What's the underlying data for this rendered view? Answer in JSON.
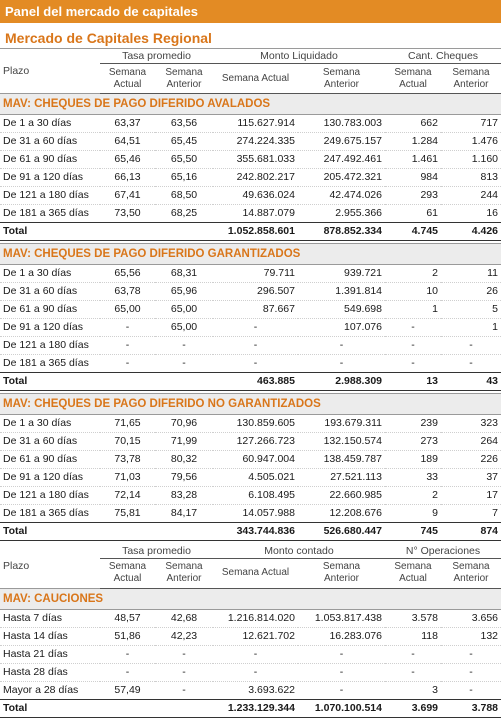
{
  "banner": "Panel del mercado de capitales",
  "subtitle": "Mercado de Capitales Regional",
  "header1": {
    "plazo": "Plazo",
    "grp1": "Tasa promedio",
    "grp2": "Monto Liquidado",
    "grp3": "Cant. Cheques",
    "semana_actual_2l": [
      "Semana",
      "Actual"
    ],
    "semana_anterior_2l": [
      "Semana",
      "Anterior"
    ],
    "semana_actual": "Semana Actual"
  },
  "header2": {
    "plazo": "Plazo",
    "grp1": "Tasa promedio",
    "grp2": "Monto contado",
    "grp3": "N° Operaciones"
  },
  "sections": [
    {
      "title": "MAV: CHEQUES DE PAGO DIFERIDO AVALADOS",
      "rows": [
        [
          "De 1 a 30 días",
          "63,37",
          "63,56",
          "115.627.914",
          "130.783.003",
          "662",
          "717"
        ],
        [
          "De 31 a 60 días",
          "64,51",
          "65,45",
          "274.224.335",
          "249.675.157",
          "1.284",
          "1.476"
        ],
        [
          "De 61 a 90 días",
          "65,46",
          "65,50",
          "355.681.033",
          "247.492.461",
          "1.461",
          "1.160"
        ],
        [
          "De 91 a 120 días",
          "66,13",
          "65,16",
          "242.802.217",
          "205.472.321",
          "984",
          "813"
        ],
        [
          "De 121 a 180 días",
          "67,41",
          "68,50",
          "49.636.024",
          "42.474.026",
          "293",
          "244"
        ],
        [
          "De 181 a 365 días",
          "73,50",
          "68,25",
          "14.887.079",
          "2.955.366",
          "61",
          "16"
        ]
      ],
      "total": [
        "Total",
        "",
        "",
        "1.052.858.601",
        "878.852.334",
        "4.745",
        "4.426"
      ]
    },
    {
      "title": "MAV: CHEQUES DE PAGO DIFERIDO GARANTIZADOS",
      "rows": [
        [
          "De 1 a 30 días",
          "65,56",
          "68,31",
          "79.711",
          "939.721",
          "2",
          "11"
        ],
        [
          "De 31 a 60 días",
          "63,78",
          "65,96",
          "296.507",
          "1.391.814",
          "10",
          "26"
        ],
        [
          "De 61 a 90 días",
          "65,00",
          "65,00",
          "87.667",
          "549.698",
          "1",
          "5"
        ],
        [
          "De 91 a 120 días",
          "-",
          "65,00",
          "-",
          "107.076",
          "-",
          "1"
        ],
        [
          "De 121 a 180 días",
          "-",
          "-",
          "-",
          "-",
          "-",
          "-"
        ],
        [
          "De 181 a 365 días",
          "-",
          "-",
          "-",
          "-",
          "-",
          "-"
        ]
      ],
      "total": [
        "Total",
        "",
        "",
        "463.885",
        "2.988.309",
        "13",
        "43"
      ]
    },
    {
      "title": "MAV: CHEQUES DE PAGO DIFERIDO NO GARANTIZADOS",
      "rows": [
        [
          "De 1 a 30 días",
          "71,65",
          "70,96",
          "130.859.605",
          "193.679.311",
          "239",
          "323"
        ],
        [
          "De 31 a 60 días",
          "70,15",
          "71,99",
          "127.266.723",
          "132.150.574",
          "273",
          "264"
        ],
        [
          "De 61 a 90 días",
          "73,78",
          "80,32",
          "60.947.004",
          "138.459.787",
          "189",
          "226"
        ],
        [
          "De 91 a 120 días",
          "71,03",
          "79,56",
          "4.505.021",
          "27.521.113",
          "33",
          "37"
        ],
        [
          "De 121 a 180 días",
          "72,14",
          "83,28",
          "6.108.495",
          "22.660.985",
          "2",
          "17"
        ],
        [
          "De 181 a 365 días",
          "75,81",
          "84,17",
          "14.057.988",
          "12.208.676",
          "9",
          "7"
        ]
      ],
      "total": [
        "Total",
        "",
        "",
        "343.744.836",
        "526.680.447",
        "745",
        "874"
      ]
    },
    {
      "title": "MAV: CAUCIONES",
      "rows": [
        [
          "Hasta 7 días",
          "48,57",
          "42,68",
          "1.216.814.020",
          "1.053.817.438",
          "3.578",
          "3.656"
        ],
        [
          "Hasta 14 días",
          "51,86",
          "42,23",
          "12.621.702",
          "16.283.076",
          "118",
          "132"
        ],
        [
          "Hasta 21 días",
          "-",
          "-",
          "-",
          "-",
          "-",
          "-"
        ],
        [
          "Hasta 28 días",
          "-",
          "-",
          "-",
          "-",
          "-",
          "-"
        ],
        [
          "Mayor a 28 días",
          "57,49",
          "-",
          "3.693.622",
          "-",
          "3",
          "-"
        ]
      ],
      "total": [
        "Total",
        "",
        "",
        "1.233.129.344",
        "1.070.100.514",
        "3.699",
        "3.788"
      ]
    }
  ]
}
